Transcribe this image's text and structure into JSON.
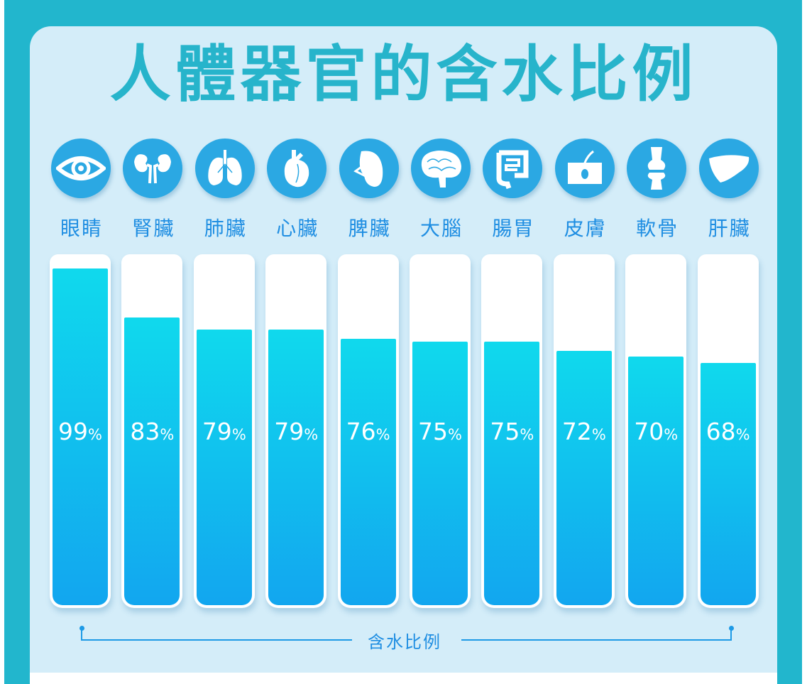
{
  "chart_data": {
    "type": "bar",
    "title": "人體器官的含水比例",
    "xlabel": "含水比例",
    "categories": [
      "眼睛",
      "腎臟",
      "肺臟",
      "心臟",
      "脾臟",
      "大腦",
      "腸胃",
      "皮膚",
      "軟骨",
      "肝臟"
    ],
    "icons": [
      "eye-icon",
      "kidney-icon",
      "lungs-icon",
      "heart-icon",
      "spleen-icon",
      "brain-icon",
      "intestine-icon",
      "skin-icon",
      "cartilage-icon",
      "liver-icon"
    ],
    "values": [
      99,
      83,
      79,
      79,
      76,
      75,
      75,
      72,
      70,
      68
    ],
    "unit": "%",
    "colors": {
      "title": "#27b4cb",
      "label": "#1f8ee2",
      "fill_top": "#10d9ed",
      "fill_bottom": "#12a6ef",
      "icon_bg": "#2ba8e3"
    }
  }
}
